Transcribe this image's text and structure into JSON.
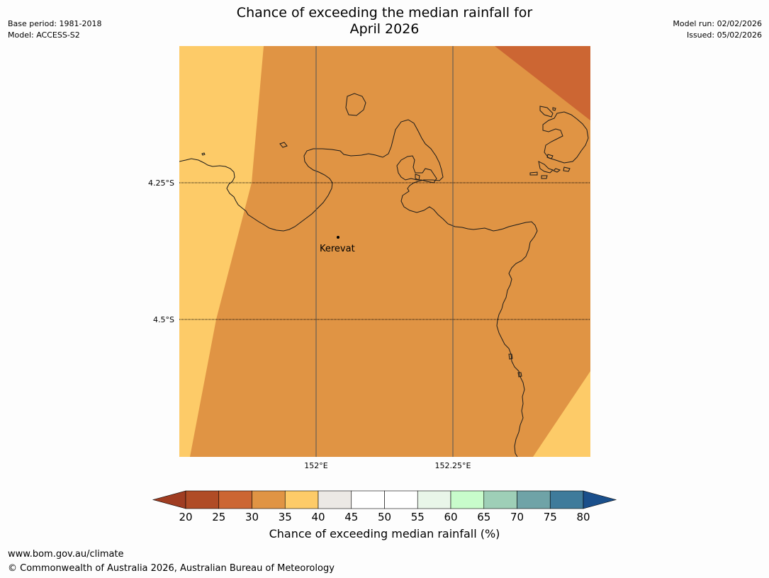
{
  "title": {
    "line1": "Chance of exceeding the median rainfall for",
    "line2": "April 2026"
  },
  "meta": {
    "base_period": "Base period: 1981-2018",
    "model": "Model: ACCESS-S2",
    "model_run": "Model run: 02/02/2026",
    "issued": "Issued: 05/02/2026"
  },
  "map": {
    "lat_labels": [
      "4.25°S",
      "4.5°S"
    ],
    "lon_labels": [
      "152°E",
      "152.25°E"
    ],
    "place": {
      "name": "Kerevat"
    },
    "colors": {
      "band_30_35": "#e09444",
      "band_35_40": "#fdcb68",
      "band_25_30": "#cc6633",
      "coast": "#1a1a1a"
    }
  },
  "legend": {
    "ticks": [
      "20",
      "25",
      "30",
      "35",
      "40",
      "45",
      "50",
      "55",
      "60",
      "65",
      "70",
      "75",
      "80"
    ],
    "colors": [
      "#a03d22",
      "#b04c26",
      "#cc6633",
      "#e09444",
      "#fdcb68",
      "#ece9e5",
      "#ffffff",
      "#ffffff",
      "#e9f6e9",
      "#c8fccb",
      "#9ecfb7",
      "#6fa3a7",
      "#3f7b9b",
      "#1a4f8b"
    ],
    "label": "Chance of exceeding median rainfall (%)"
  },
  "footer": {
    "url": "www.bom.gov.au/climate",
    "copyright": "© Commonwealth of Australia 2026, Australian Bureau of Meteorology"
  }
}
